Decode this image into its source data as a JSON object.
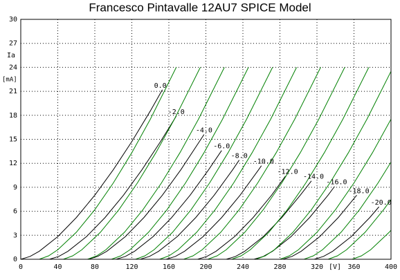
{
  "chart_data": {
    "type": "line",
    "title": "Francesco Pintavalle 12AU7 SPICE Model",
    "ylabel": "Ia",
    "yunit": "[mA]",
    "xunit": "[V]",
    "xlim": [
      0,
      400
    ],
    "xticks": [
      0,
      40,
      80,
      120,
      160,
      200,
      240,
      280,
      320,
      360,
      400
    ],
    "ylim": [
      0,
      30
    ],
    "yticks": [
      0,
      3,
      6,
      9,
      12,
      15,
      18,
      21,
      24,
      27,
      30
    ],
    "grid": true,
    "series": [
      {
        "name": "0.0",
        "color": "#000000",
        "x": [
          0,
          10,
          20,
          40,
          60,
          80,
          100,
          120,
          140,
          153
        ],
        "values": [
          0,
          0.35,
          1.0,
          2.83,
          5.21,
          8.01,
          11.2,
          14.72,
          18.55,
          21.2
        ]
      },
      {
        "name": "-2.0",
        "color": "#000000",
        "x": [
          31,
          41,
          51,
          71,
          91,
          111,
          131,
          151,
          168
        ],
        "values": [
          0,
          0.35,
          1.0,
          2.83,
          5.21,
          8.01,
          11.2,
          14.72,
          17.9
        ]
      },
      {
        "name": "-4.0",
        "color": "#000000",
        "x": [
          73,
          83,
          93,
          113,
          133,
          153,
          173,
          193,
          198
        ],
        "values": [
          0,
          0.35,
          1.0,
          2.83,
          5.21,
          8.01,
          11.2,
          14.72,
          15.6
        ]
      },
      {
        "name": "-6.0",
        "color": "#000000",
        "x": [
          103,
          113,
          123,
          143,
          163,
          183,
          203,
          217
        ],
        "values": [
          0,
          0.35,
          1.0,
          2.83,
          5.21,
          8.01,
          11.2,
          13.6
        ]
      },
      {
        "name": "-8.0",
        "color": "#000000",
        "x": [
          129,
          139,
          149,
          169,
          189,
          209,
          229,
          236
        ],
        "values": [
          0,
          0.35,
          1.0,
          2.83,
          5.21,
          8.01,
          11.2,
          12.4
        ]
      },
      {
        "name": "-10.0",
        "color": "#000000",
        "x": [
          157,
          167,
          177,
          197,
          217,
          237,
          257,
          260
        ],
        "values": [
          0,
          0.35,
          1.0,
          2.83,
          5.21,
          8.01,
          11.2,
          11.7
        ]
      },
      {
        "name": "-12.0",
        "color": "#000000",
        "x": [
          191,
          201,
          211,
          231,
          251,
          271,
          286
        ],
        "values": [
          0,
          0.35,
          1.0,
          2.83,
          5.21,
          8.01,
          10.4
        ]
      },
      {
        "name": "-14.0",
        "color": "#000000",
        "x": [
          222,
          232,
          242,
          262,
          282,
          302,
          314
        ],
        "values": [
          0,
          0.35,
          1.0,
          2.83,
          5.21,
          8.01,
          9.8
        ]
      },
      {
        "name": "-16.0",
        "color": "#000000",
        "x": [
          252,
          262,
          272,
          292,
          312,
          332,
          339
        ],
        "values": [
          0,
          0.35,
          1.0,
          2.83,
          5.21,
          8.01,
          9.1
        ]
      },
      {
        "name": "-18.0",
        "color": "#000000",
        "x": [
          283,
          293,
          303,
          323,
          343,
          363
        ],
        "values": [
          0,
          0.35,
          1.0,
          2.83,
          5.21,
          8.01
        ]
      },
      {
        "name": "-20.0",
        "color": "#000000",
        "x": [
          317,
          327,
          337,
          357,
          377,
          387
        ],
        "values": [
          0,
          0.35,
          1.0,
          2.83,
          5.21,
          6.56
        ]
      },
      {
        "color": "#008000",
        "x": [
          20,
          30,
          40,
          60,
          80,
          100,
          120,
          140,
          168
        ],
        "values": [
          0,
          0.42,
          1.19,
          3.37,
          6.2,
          9.54,
          13.33,
          17.52,
          24.0
        ]
      },
      {
        "color": "#008000",
        "x": [
          46,
          56,
          66,
          86,
          106,
          126,
          146,
          166,
          194
        ],
        "values": [
          0,
          0.42,
          1.19,
          3.37,
          6.2,
          9.54,
          13.33,
          17.52,
          24.0
        ]
      },
      {
        "color": "#008000",
        "x": [
          72,
          82,
          92,
          112,
          132,
          152,
          172,
          192,
          220
        ],
        "values": [
          0,
          0.42,
          1.19,
          3.37,
          6.2,
          9.54,
          13.33,
          17.52,
          24.0
        ]
      },
      {
        "color": "#008000",
        "x": [
          98,
          108,
          118,
          138,
          158,
          178,
          198,
          218,
          246
        ],
        "values": [
          0,
          0.42,
          1.19,
          3.37,
          6.2,
          9.54,
          13.33,
          17.52,
          24.0
        ]
      },
      {
        "color": "#008000",
        "x": [
          124,
          134,
          144,
          164,
          184,
          204,
          224,
          244,
          272
        ],
        "values": [
          0,
          0.42,
          1.19,
          3.37,
          6.2,
          9.54,
          13.33,
          17.52,
          24.0
        ]
      },
      {
        "color": "#008000",
        "x": [
          150,
          160,
          170,
          190,
          210,
          230,
          250,
          270,
          298
        ],
        "values": [
          0,
          0.42,
          1.19,
          3.37,
          6.2,
          9.54,
          13.33,
          17.52,
          24.0
        ]
      },
      {
        "color": "#008000",
        "x": [
          176,
          186,
          196,
          216,
          236,
          256,
          276,
          296,
          324
        ],
        "values": [
          0,
          0.42,
          1.19,
          3.37,
          6.2,
          9.54,
          13.33,
          17.52,
          24.0
        ]
      },
      {
        "color": "#008000",
        "x": [
          202,
          212,
          222,
          242,
          262,
          282,
          302,
          322,
          350
        ],
        "values": [
          0,
          0.42,
          1.19,
          3.37,
          6.2,
          9.54,
          13.33,
          17.52,
          24.0
        ]
      },
      {
        "color": "#008000",
        "x": [
          228,
          238,
          248,
          268,
          288,
          308,
          328,
          348,
          376
        ],
        "values": [
          0,
          0.42,
          1.19,
          3.37,
          6.2,
          9.54,
          13.33,
          17.52,
          24.0
        ]
      },
      {
        "color": "#008000",
        "x": [
          254,
          264,
          274,
          294,
          314,
          334,
          354,
          374,
          400
        ],
        "values": [
          0,
          0.42,
          1.19,
          3.37,
          6.2,
          9.54,
          13.33,
          17.52,
          23.5
        ]
      },
      {
        "color": "#008000",
        "x": [
          280,
          290,
          300,
          320,
          340,
          360,
          380,
          400
        ],
        "values": [
          0,
          0.42,
          1.19,
          3.37,
          6.2,
          9.54,
          13.33,
          17.52
        ]
      },
      {
        "color": "#008000",
        "x": [
          306,
          316,
          326,
          346,
          366,
          386,
          400
        ],
        "values": [
          0,
          0.42,
          1.19,
          3.37,
          6.2,
          9.54,
          12.15
        ]
      },
      {
        "color": "#008000",
        "x": [
          332,
          342,
          352,
          372,
          392,
          400
        ],
        "values": [
          0,
          0.42,
          1.19,
          3.37,
          6.2,
          7.47
        ]
      },
      {
        "color": "#008000",
        "x": [
          358,
          368,
          378,
          398,
          400
        ],
        "values": [
          0,
          0.42,
          1.19,
          3.37,
          3.63
        ]
      }
    ]
  }
}
